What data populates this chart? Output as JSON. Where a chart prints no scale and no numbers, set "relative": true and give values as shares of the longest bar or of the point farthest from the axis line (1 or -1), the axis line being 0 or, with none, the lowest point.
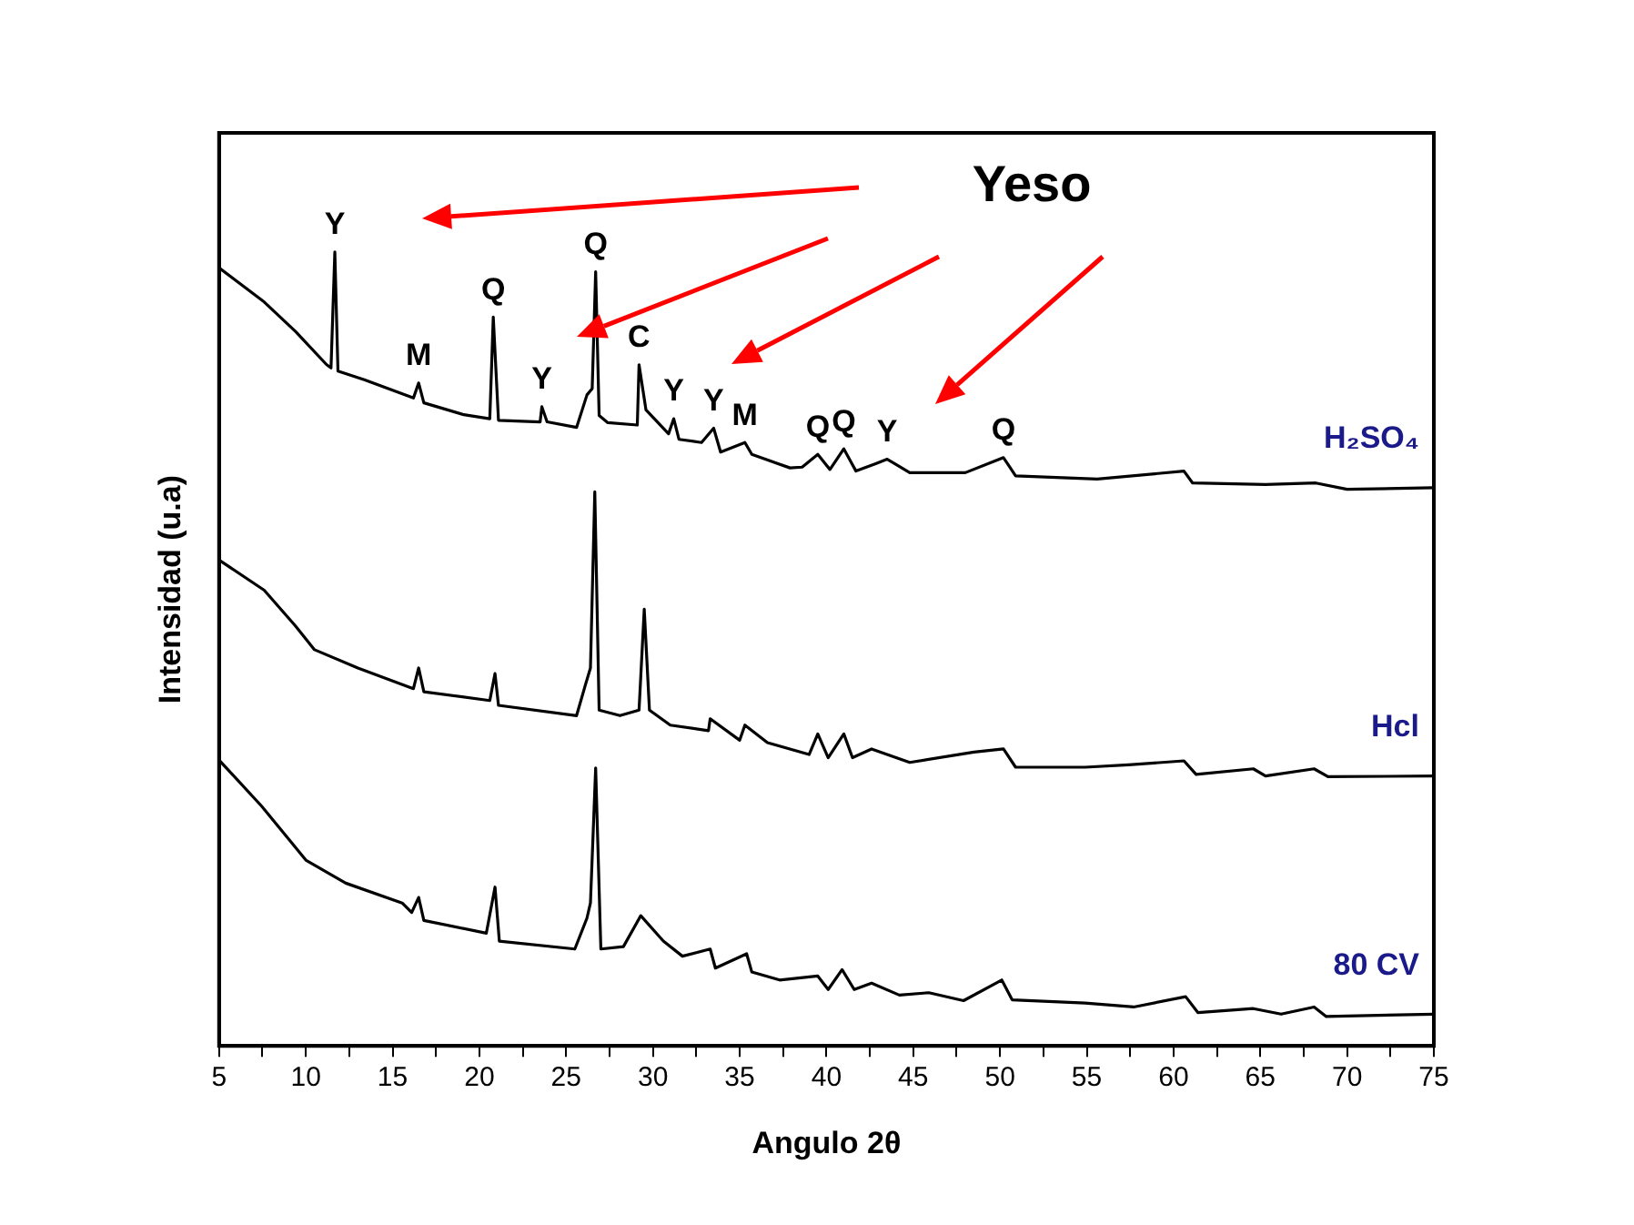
{
  "chart_data": {
    "type": "line",
    "xlabel": "Angulo 2θ",
    "ylabel": "Intensidad (u.a)",
    "relative": true,
    "grid": false,
    "legend": false,
    "marker": "none",
    "line_style": "solid",
    "xlim": [
      5,
      75
    ],
    "xticks": [
      5,
      {
        "value": 7.5,
        "label": null
      },
      10,
      {
        "value": 12.5,
        "label": null
      },
      15,
      {
        "value": 17.5,
        "label": null
      },
      20,
      {
        "value": 22.5,
        "label": null
      },
      25,
      {
        "value": 27.5,
        "label": null
      },
      30,
      {
        "value": 32.5,
        "label": null
      },
      35,
      {
        "value": 37.5,
        "label": null
      },
      40,
      {
        "value": 42.5,
        "label": null
      },
      45,
      {
        "value": 47.5,
        "label": null
      },
      50,
      {
        "value": 52.5,
        "label": null
      },
      55,
      {
        "value": 57.5,
        "label": null
      },
      60,
      {
        "value": 62.5,
        "label": null
      },
      65,
      {
        "value": 67.5,
        "label": null
      },
      70,
      {
        "value": 72.5,
        "label": null
      },
      75
    ],
    "series": [
      {
        "name": "H₂SO₄",
        "color": "#000000",
        "x": [
          5,
          7.6,
          9.4,
          11.2,
          11.45,
          11.67,
          11.85,
          13.37,
          16.2,
          16.5,
          16.8,
          19.1,
          20.6,
          20.8,
          21.1,
          23.5,
          23.6,
          23.9,
          25.6,
          26.2,
          26.5,
          26.7,
          26.9,
          27.4,
          29.1,
          29.2,
          29.6,
          30.9,
          31.2,
          31.5,
          32.8,
          33.5,
          33.9,
          35.3,
          35.7,
          37.9,
          38.6,
          39.5,
          40.2,
          41.0,
          41.7,
          42.8,
          43.5,
          44.8,
          48.0,
          50.2,
          50.9,
          55.6,
          60.6,
          61.1,
          65.3,
          68.2,
          70.0,
          75
        ],
        "values": [
          0.98,
          0.937,
          0.9,
          0.858,
          0.854,
          1.0,
          0.85,
          0.839,
          0.816,
          0.835,
          0.81,
          0.795,
          0.79,
          0.918,
          0.788,
          0.786,
          0.805,
          0.786,
          0.779,
          0.82,
          0.828,
          0.975,
          0.794,
          0.785,
          0.782,
          0.858,
          0.801,
          0.771,
          0.79,
          0.764,
          0.76,
          0.778,
          0.748,
          0.76,
          0.745,
          0.728,
          0.729,
          0.745,
          0.726,
          0.752,
          0.724,
          0.733,
          0.739,
          0.722,
          0.722,
          0.741,
          0.718,
          0.714,
          0.724,
          0.709,
          0.707,
          0.709,
          0.701,
          0.703
        ]
      },
      {
        "name": "Hcl",
        "color": "#000000",
        "x": [
          5,
          7.6,
          9.4,
          10.5,
          13.0,
          16.2,
          16.5,
          16.8,
          20.6,
          20.9,
          21.1,
          25.6,
          26.1,
          26.4,
          26.65,
          26.9,
          28.1,
          29.2,
          29.5,
          29.8,
          31.0,
          33.2,
          33.3,
          35.0,
          35.3,
          36.6,
          39.0,
          39.5,
          40.1,
          41.0,
          41.5,
          42.6,
          44.8,
          47.6,
          48.5,
          50.2,
          50.9,
          54.9,
          57.4,
          60.6,
          61.3,
          64.6,
          65.3,
          68.1,
          68.9,
          75
        ],
        "values": [
          0.612,
          0.574,
          0.529,
          0.499,
          0.476,
          0.45,
          0.476,
          0.446,
          0.435,
          0.469,
          0.429,
          0.416,
          0.454,
          0.476,
          0.698,
          0.423,
          0.416,
          0.423,
          0.55,
          0.423,
          0.404,
          0.397,
          0.412,
          0.385,
          0.404,
          0.382,
          0.367,
          0.393,
          0.363,
          0.393,
          0.363,
          0.374,
          0.357,
          0.367,
          0.37,
          0.374,
          0.351,
          0.351,
          0.354,
          0.359,
          0.342,
          0.349,
          0.34,
          0.349,
          0.339,
          0.34
        ]
      },
      {
        "name": "80 CV",
        "color": "#000000",
        "x": [
          5,
          7.45,
          10.0,
          12.3,
          15.55,
          16.1,
          16.5,
          16.8,
          20.4,
          20.9,
          21.15,
          25.5,
          26.2,
          26.4,
          26.7,
          27.0,
          28.3,
          29.3,
          30.6,
          31.7,
          33.3,
          33.6,
          35.4,
          35.7,
          37.3,
          39.5,
          40.1,
          40.9,
          41.6,
          42.6,
          44.2,
          45.9,
          47.9,
          50.1,
          50.7,
          54.9,
          57.7,
          60.7,
          61.4,
          64.6,
          66.2,
          68.1,
          68.8,
          75
        ],
        "values": [
          0.36,
          0.302,
          0.234,
          0.205,
          0.18,
          0.168,
          0.187,
          0.158,
          0.142,
          0.2,
          0.132,
          0.122,
          0.161,
          0.18,
          0.35,
          0.122,
          0.125,
          0.164,
          0.132,
          0.113,
          0.122,
          0.098,
          0.116,
          0.093,
          0.083,
          0.088,
          0.071,
          0.096,
          0.071,
          0.079,
          0.064,
          0.067,
          0.057,
          0.083,
          0.058,
          0.054,
          0.049,
          0.062,
          0.042,
          0.047,
          0.04,
          0.049,
          0.037,
          0.04
        ]
      }
    ],
    "annotations": [
      "Yeso",
      {
        "text": "Y",
        "x": 11.67,
        "y": 1.0
      },
      {
        "text": "M",
        "x": 16.5,
        "y": 0.835
      },
      {
        "text": "Q",
        "x": 20.8,
        "y": 0.918
      },
      {
        "text": "Y",
        "x": 23.6,
        "y": 0.805
      },
      {
        "text": "Q",
        "x": 26.7,
        "y": 0.975
      },
      {
        "text": "C",
        "x": 29.2,
        "y": 0.858
      },
      {
        "text": "Y",
        "x": 31.2,
        "y": 0.79
      },
      {
        "text": "Y",
        "x": 33.5,
        "y": 0.778
      },
      {
        "text": "M",
        "x": 35.3,
        "y": 0.76
      },
      {
        "text": "Q",
        "x": 39.5,
        "y": 0.745
      },
      {
        "text": "Q",
        "x": 41.0,
        "y": 0.752
      },
      {
        "text": "Y",
        "x": 43.5,
        "y": 0.739
      },
      {
        "text": "Q",
        "x": 50.2,
        "y": 0.741
      }
    ]
  }
}
